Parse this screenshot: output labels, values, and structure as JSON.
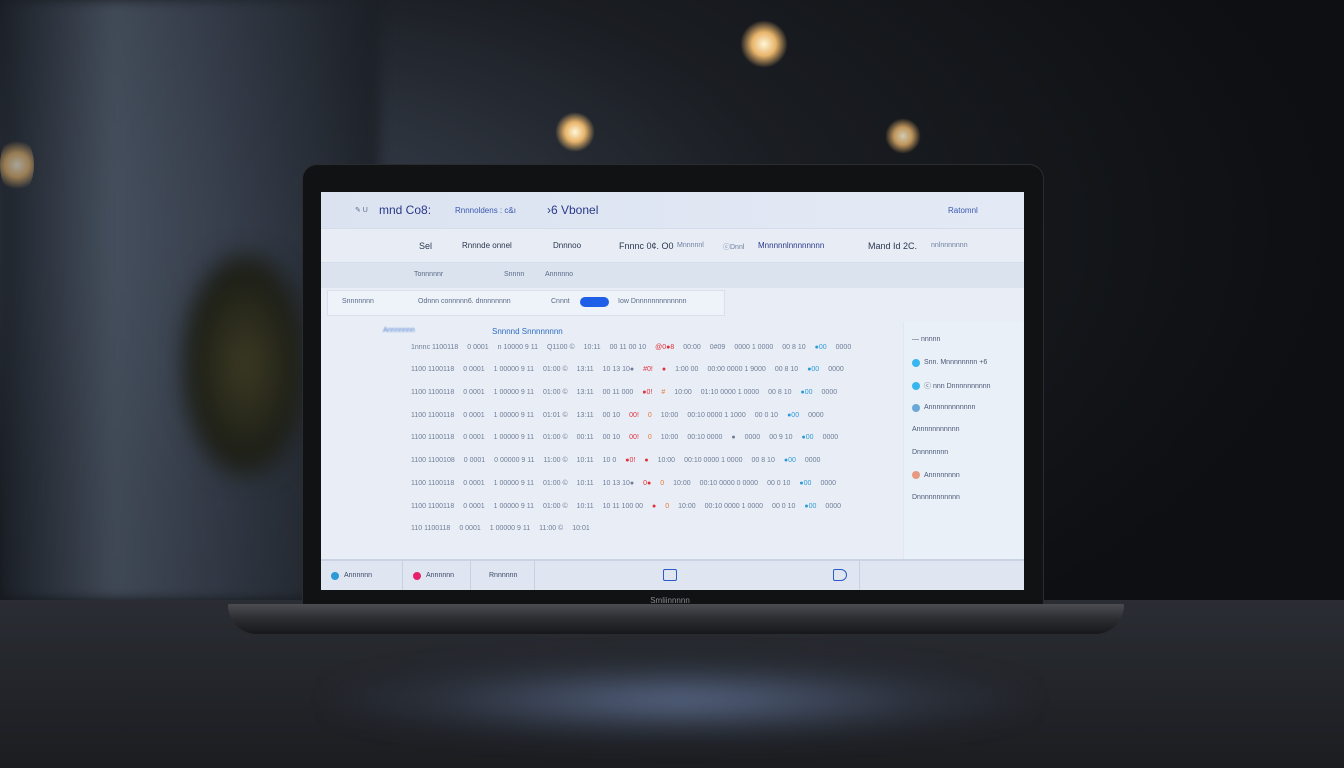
{
  "brand": "Smliinnnnn",
  "screen": {
    "header": {
      "left_small": "✎ U",
      "title1": "mnd Co8:",
      "breadcrumb": "Rnnnoldens : c&ı",
      "title2": "›6 Vbonel",
      "right": "Ratomnl"
    },
    "nav": [
      "Sel",
      "Rnnnde onnel",
      "Dnnnoo",
      "Fnnnc 0¢. O0",
      "Mnnnnnl",
      "ⓒDnnl",
      "Mnnnnnlnnnnnnnn",
      "Mand Id 2C.",
      "nnlnnnnnnn"
    ],
    "subnav": [
      "Tonnnnnr",
      "Snnnn",
      "Annnnno"
    ],
    "filter": {
      "label": "Snnnnnnn",
      "text": "Odnnn connnnn6. dnnnnnnnn",
      "count": "Cnnnt",
      "toggle_on": true,
      "hint": "Iow Dnnnnnnnnnnnnn"
    },
    "section": {
      "left": "Annnnnnn",
      "title": "Snnnnd Snnnnnnnn"
    },
    "rows": [
      [
        "1nnnc 1100118",
        "0 0001",
        "n 10000 9 11",
        "Q1100 ©",
        "10:11",
        "00 11 00 10",
        "@0●8",
        "00:00",
        "0#09",
        "0000 1 0000",
        "00 8 10",
        "●00",
        "0000"
      ],
      [
        "1100 1100118",
        "0 0001",
        "1 00000 9 11",
        "01:00 ©",
        "13:11",
        "10 13 10●",
        "#0!",
        "●",
        "1:00 00",
        "00:00 0000 1 9000",
        "00 8 10",
        "●00",
        "0000"
      ],
      [
        "1100 1100118",
        "0 0001",
        "1 00000 9 11",
        "01:00 ©",
        "13:11",
        "00 11 000",
        "●0!",
        "#",
        "10:00",
        "01:10 0000 1 0000",
        "00 8 10",
        "●00",
        "0000"
      ],
      [
        "1100 1100118",
        "0 0001",
        "1 00000 9 11",
        "01:01 ©",
        "13:11",
        "00 10",
        "00!",
        "0",
        "10:00",
        "00:10 0000 1 1000",
        "00 0 10",
        "●00",
        "0000"
      ],
      [
        "1100 1100118",
        "0 0001",
        "1 00000 9 11",
        "01:00 ©",
        "00:11",
        "00 10",
        "00!",
        "0",
        "10:00",
        "00:10 0000",
        "●",
        "0000",
        "00 9 10",
        "●00",
        "0000"
      ],
      [
        "1100 1100108",
        "0 0001",
        "0 00000 9 11",
        "11:00 ©",
        "10:11",
        "10 0",
        "●0!",
        "●",
        "10:00",
        "00:10 0000 1 0000",
        "00 8 10",
        "●00",
        "0000"
      ],
      [
        "1100 1100118",
        "0 0001",
        "1 00000 9 11",
        "01:00 ©",
        "10:11",
        "10 13 10●",
        "0●",
        "0",
        "10:00",
        "00:10 0000 0 0000",
        "00 0 10",
        "●00",
        "0000"
      ],
      [
        "1100 1100118",
        "0 0001",
        "1 00000 9 11",
        "01:00 ©",
        "10:11",
        "10 11 100 00",
        "●",
        "0",
        "10:00",
        "00:10 0000 1 0000",
        "00 0 10",
        "●00",
        "0000"
      ],
      [
        "110 1100118",
        "0 0001",
        "1 00000 9 11",
        "11:00 ©",
        "10:01"
      ]
    ],
    "row_colors": {
      "red": [
        "@0●8",
        "#0!",
        "●0!",
        "00!",
        "●0",
        "●",
        "0●"
      ],
      "orange": [
        "0#09",
        "●",
        "#",
        "0"
      ],
      "blue": [
        "●00"
      ]
    },
    "right_panel": [
      {
        "label": "— nnnnn",
        "dot": ""
      },
      {
        "label": "Snn. Mnnnnnnnn +6",
        "dot": "#38b6f0"
      },
      {
        "label": "ⓒ nnn Dnnnnnnnnnn",
        "dot": "#38b6f0"
      },
      {
        "label": "Annnnnnnnnnnn",
        "dot": "#6aa8d8"
      },
      {
        "label": "Annnnnnnnnnn",
        "dot": ""
      },
      {
        "label": "Dnnnnnnnn",
        "dot": ""
      },
      {
        "label": "Annnnnnnn",
        "dot": "#e89a80"
      },
      {
        "label": "Dnnnnnnnnnnn",
        "dot": ""
      }
    ],
    "footer": {
      "item1": "Annnnnn",
      "item1_color": "#2e9ad8",
      "item2": "Annnnnn",
      "item2_color": "#e8206a",
      "item3": "Rnnnnnn",
      "icon1": "tablet-icon",
      "icon2": "device-icon"
    }
  }
}
